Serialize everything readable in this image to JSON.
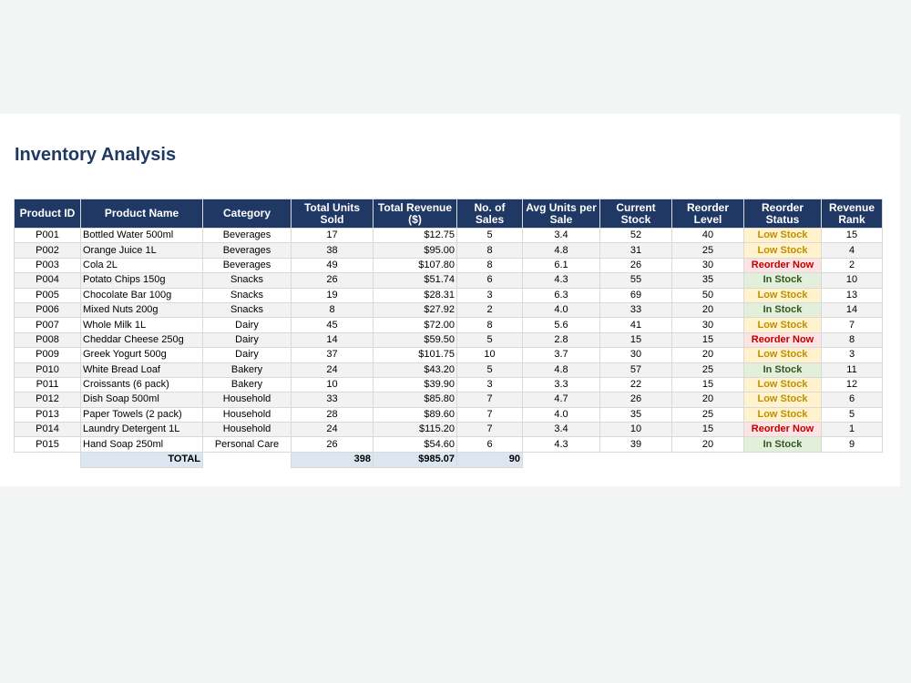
{
  "sheet": {
    "title": "Inventory Analysis",
    "headers": [
      "Product ID",
      "Product Name",
      "Category",
      "Total Units Sold",
      "Total Revenue ($)",
      "No. of Sales",
      "Avg Units per Sale",
      "Current Stock",
      "Reorder Level",
      "Reorder Status",
      "Revenue Rank"
    ],
    "rows": [
      {
        "id": "P001",
        "name": "Bottled Water 500ml",
        "category": "Beverages",
        "units": "17",
        "revenue": "$12.75",
        "sales": "5",
        "avg": "3.4",
        "stock": "52",
        "reorder": "40",
        "status": "Low Stock",
        "rank": "15"
      },
      {
        "id": "P002",
        "name": "Orange Juice 1L",
        "category": "Beverages",
        "units": "38",
        "revenue": "$95.00",
        "sales": "8",
        "avg": "4.8",
        "stock": "31",
        "reorder": "25",
        "status": "Low Stock",
        "rank": "4"
      },
      {
        "id": "P003",
        "name": "Cola 2L",
        "category": "Beverages",
        "units": "49",
        "revenue": "$107.80",
        "sales": "8",
        "avg": "6.1",
        "stock": "26",
        "reorder": "30",
        "status": "Reorder Now",
        "rank": "2"
      },
      {
        "id": "P004",
        "name": "Potato Chips 150g",
        "category": "Snacks",
        "units": "26",
        "revenue": "$51.74",
        "sales": "6",
        "avg": "4.3",
        "stock": "55",
        "reorder": "35",
        "status": "In Stock",
        "rank": "10"
      },
      {
        "id": "P005",
        "name": "Chocolate Bar 100g",
        "category": "Snacks",
        "units": "19",
        "revenue": "$28.31",
        "sales": "3",
        "avg": "6.3",
        "stock": "69",
        "reorder": "50",
        "status": "Low Stock",
        "rank": "13"
      },
      {
        "id": "P006",
        "name": "Mixed Nuts 200g",
        "category": "Snacks",
        "units": "8",
        "revenue": "$27.92",
        "sales": "2",
        "avg": "4.0",
        "stock": "33",
        "reorder": "20",
        "status": "In Stock",
        "rank": "14"
      },
      {
        "id": "P007",
        "name": "Whole Milk 1L",
        "category": "Dairy",
        "units": "45",
        "revenue": "$72.00",
        "sales": "8",
        "avg": "5.6",
        "stock": "41",
        "reorder": "30",
        "status": "Low Stock",
        "rank": "7"
      },
      {
        "id": "P008",
        "name": "Cheddar Cheese 250g",
        "category": "Dairy",
        "units": "14",
        "revenue": "$59.50",
        "sales": "5",
        "avg": "2.8",
        "stock": "15",
        "reorder": "15",
        "status": "Reorder Now",
        "rank": "8"
      },
      {
        "id": "P009",
        "name": "Greek Yogurt 500g",
        "category": "Dairy",
        "units": "37",
        "revenue": "$101.75",
        "sales": "10",
        "avg": "3.7",
        "stock": "30",
        "reorder": "20",
        "status": "Low Stock",
        "rank": "3"
      },
      {
        "id": "P010",
        "name": "White Bread Loaf",
        "category": "Bakery",
        "units": "24",
        "revenue": "$43.20",
        "sales": "5",
        "avg": "4.8",
        "stock": "57",
        "reorder": "25",
        "status": "In Stock",
        "rank": "11"
      },
      {
        "id": "P011",
        "name": "Croissants (6 pack)",
        "category": "Bakery",
        "units": "10",
        "revenue": "$39.90",
        "sales": "3",
        "avg": "3.3",
        "stock": "22",
        "reorder": "15",
        "status": "Low Stock",
        "rank": "12"
      },
      {
        "id": "P012",
        "name": "Dish Soap 500ml",
        "category": "Household",
        "units": "33",
        "revenue": "$85.80",
        "sales": "7",
        "avg": "4.7",
        "stock": "26",
        "reorder": "20",
        "status": "Low Stock",
        "rank": "6"
      },
      {
        "id": "P013",
        "name": "Paper Towels (2 pack)",
        "category": "Household",
        "units": "28",
        "revenue": "$89.60",
        "sales": "7",
        "avg": "4.0",
        "stock": "35",
        "reorder": "25",
        "status": "Low Stock",
        "rank": "5"
      },
      {
        "id": "P014",
        "name": "Laundry Detergent 1L",
        "category": "Household",
        "units": "24",
        "revenue": "$115.20",
        "sales": "7",
        "avg": "3.4",
        "stock": "10",
        "reorder": "15",
        "status": "Reorder Now",
        "rank": "1"
      },
      {
        "id": "P015",
        "name": "Hand Soap 250ml",
        "category": "Personal Care",
        "units": "26",
        "revenue": "$54.60",
        "sales": "6",
        "avg": "4.3",
        "stock": "39",
        "reorder": "20",
        "status": "In Stock",
        "rank": "9"
      }
    ],
    "total": {
      "label": "TOTAL",
      "units": "398",
      "revenue": "$985.07",
      "sales": "90"
    }
  },
  "colors": {
    "header_bg": "#1f3864",
    "title": "#1f3864",
    "low_stock": "#bf9000",
    "reorder_now": "#c00000",
    "in_stock": "#375623",
    "total_bg": "#dce6f1"
  }
}
